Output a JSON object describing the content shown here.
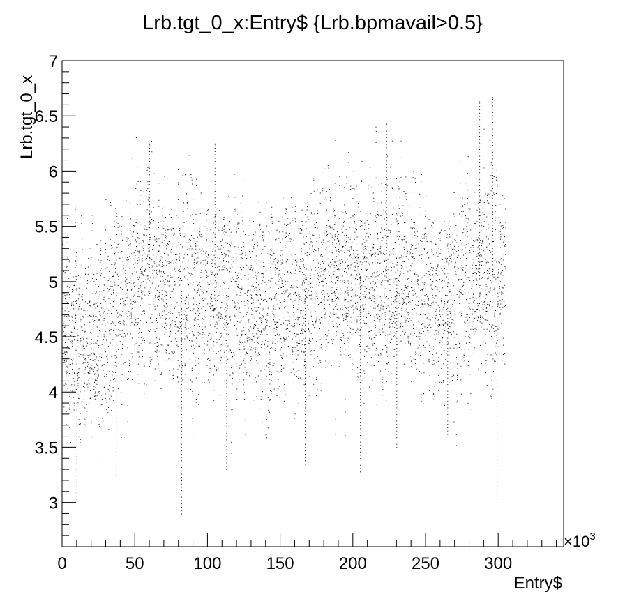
{
  "chart_data": {
    "type": "scatter",
    "title": "Lrb.tgt_0_x:Entry$ {Lrb.bpmavail>0.5}",
    "xlabel": "Entry$",
    "ylabel": "Lrb.tgt_0_x",
    "x_exponent_label": "×10",
    "x_exponent_power": "3",
    "xlim": [
      0,
      345
    ],
    "ylim": [
      2.6,
      7.0
    ],
    "x_ticks": [
      "0",
      "50",
      "100",
      "150",
      "200",
      "250",
      "300"
    ],
    "y_ticks": [
      "3",
      "3.5",
      "4",
      "4.5",
      "5",
      "5.5",
      "6",
      "6.5",
      "7"
    ],
    "grid": false,
    "legend": "none",
    "marker_color": "#000000",
    "series": [
      {
        "x_range": [
          0,
          305
        ],
        "baseline": [
          {
            "x": 0,
            "y": 4.6
          },
          {
            "x": 20,
            "y": 4.5
          },
          {
            "x": 40,
            "y": 4.8
          },
          {
            "x": 60,
            "y": 5.1
          },
          {
            "x": 80,
            "y": 4.9
          },
          {
            "x": 100,
            "y": 5.0
          },
          {
            "x": 120,
            "y": 4.8
          },
          {
            "x": 140,
            "y": 4.7
          },
          {
            "x": 160,
            "y": 4.9
          },
          {
            "x": 180,
            "y": 5.0
          },
          {
            "x": 200,
            "y": 5.1
          },
          {
            "x": 220,
            "y": 5.0
          },
          {
            "x": 240,
            "y": 5.1
          },
          {
            "x": 260,
            "y": 4.8
          },
          {
            "x": 280,
            "y": 5.0
          },
          {
            "x": 305,
            "y": 5.1
          }
        ],
        "extremes": [
          {
            "x": 37,
            "y": 3.25
          },
          {
            "x": 82,
            "y": 2.9
          },
          {
            "x": 113,
            "y": 3.3
          },
          {
            "x": 167,
            "y": 3.35
          },
          {
            "x": 205,
            "y": 3.28
          },
          {
            "x": 223,
            "y": 6.43
          },
          {
            "x": 230,
            "y": 3.5
          },
          {
            "x": 265,
            "y": 3.62
          },
          {
            "x": 287,
            "y": 6.63
          },
          {
            "x": 296,
            "y": 6.67
          },
          {
            "x": 299,
            "y": 3.0
          },
          {
            "x": 10,
            "y": 3.0
          },
          {
            "x": 60,
            "y": 6.25
          },
          {
            "x": 105,
            "y": 6.25
          }
        ]
      }
    ]
  }
}
